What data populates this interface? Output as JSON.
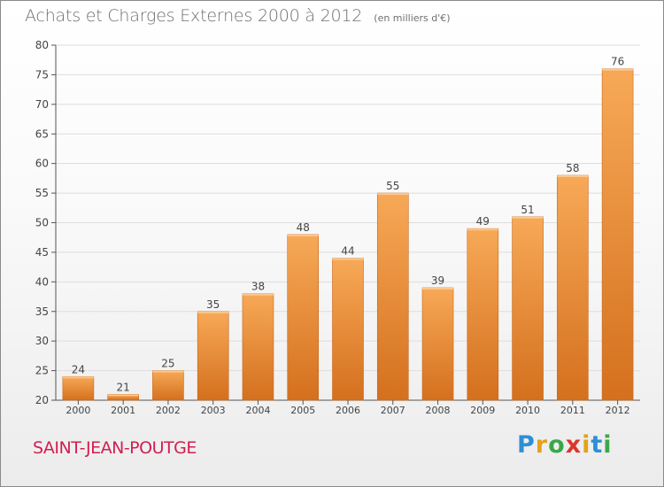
{
  "header": {
    "title": "Achats et Charges Externes 2000 à 2012",
    "unit": "(en milliers d'€)"
  },
  "footer": {
    "commune": "SAINT-JEAN-POUTGE",
    "brand": "Proxiti"
  },
  "colors": {
    "bar_top": "#f7a957",
    "bar_bottom": "#d4701e",
    "bar_stroke": "#c9671a",
    "commune": "#d11e53"
  },
  "chart_data": {
    "type": "bar",
    "title": "Achats et Charges Externes 2000 à 2012",
    "subtitle": "(en milliers d'€)",
    "categories": [
      "2000",
      "2001",
      "2002",
      "2003",
      "2004",
      "2005",
      "2006",
      "2007",
      "2008",
      "2009",
      "2010",
      "2011",
      "2012"
    ],
    "values": [
      24,
      21,
      25,
      35,
      38,
      48,
      44,
      55,
      39,
      49,
      51,
      58,
      76
    ],
    "xlabel": "",
    "ylabel": "",
    "ylim": [
      20,
      80
    ],
    "yticks": [
      20,
      25,
      30,
      35,
      40,
      45,
      50,
      55,
      60,
      65,
      70,
      75,
      80
    ],
    "grid": true,
    "data_labels": true
  }
}
